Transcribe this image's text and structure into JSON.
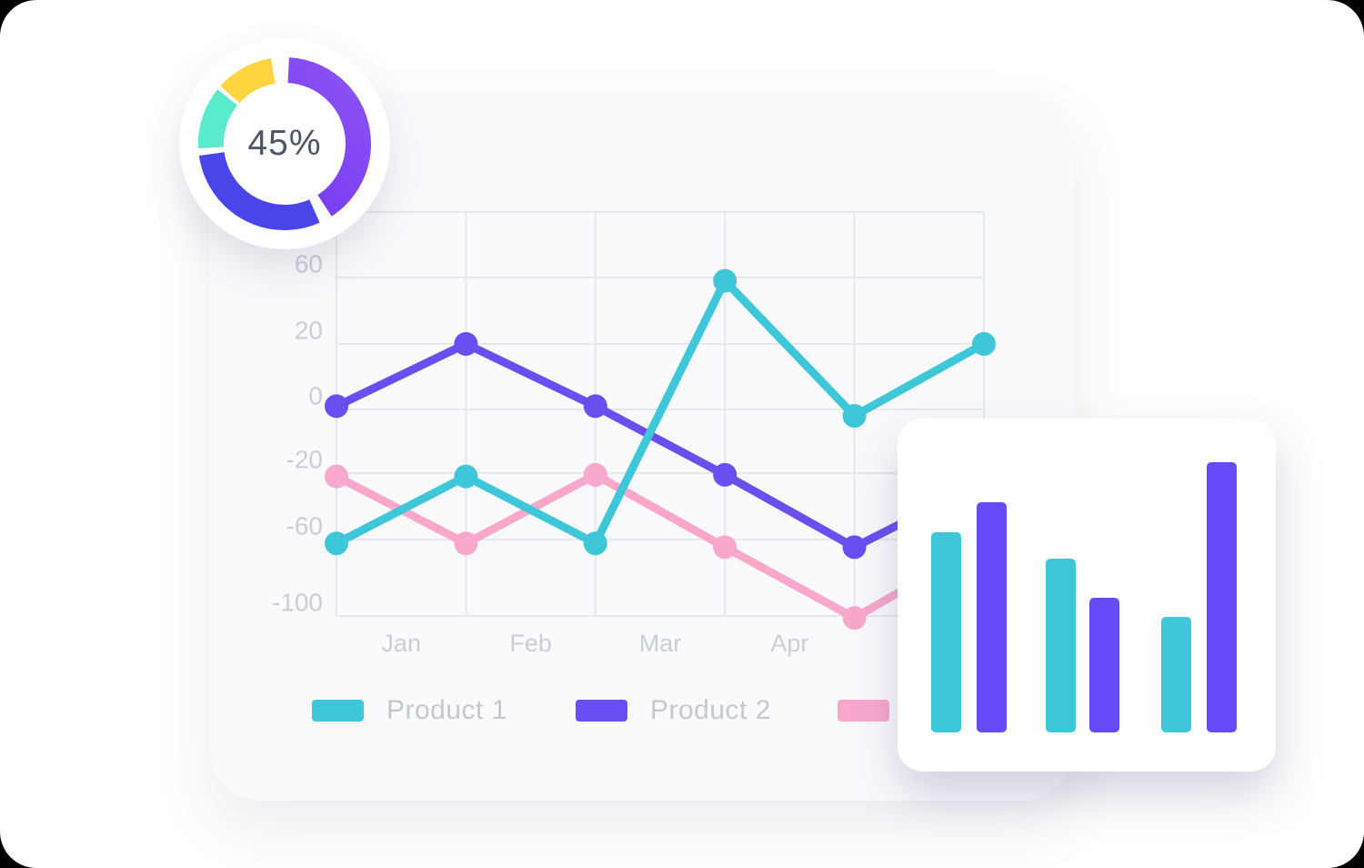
{
  "page": {
    "background": "#ffffff"
  },
  "donut_widget": {
    "center_label": "45%",
    "text_color": "#4d5466",
    "segments": [
      {
        "name": "violet",
        "color": "#7a3cf3",
        "gradient_start": "#6d2ef0",
        "gradient_end": "#8c53f6",
        "start_deg": 3,
        "sweep_deg": 144
      },
      {
        "name": "indigo",
        "color": "#4a45e8",
        "start_deg": 156,
        "sweep_deg": 106
      },
      {
        "name": "teal",
        "color": "#5aeacc",
        "start_deg": 267,
        "sweep_deg": 42
      },
      {
        "name": "yellow",
        "color": "#ffd43e",
        "start_deg": 312,
        "sweep_deg": 39
      }
    ]
  },
  "legend": {
    "items": [
      {
        "label": "Product 1",
        "color": "#3ec7d9"
      },
      {
        "label": "Product 2",
        "color": "#6b4ef0"
      },
      {
        "label": "",
        "color": "#f9a8cc",
        "note": "label hidden behind bar card"
      }
    ]
  },
  "chart_data": [
    {
      "type": "line",
      "title": "",
      "xlabel": "",
      "ylabel": "",
      "x_tick_labels": [
        "Jan",
        "Feb",
        "Mar",
        "Apr"
      ],
      "y_tick_labels": [
        60,
        20,
        0,
        -20,
        -60,
        -100
      ],
      "grid": true,
      "legend_position": "bottom",
      "points_per_series": 6,
      "series": [
        {
          "name": "Product 1",
          "color": "#3ec7d9",
          "values": [
            -62,
            -22,
            -62,
            58,
            -2,
            20
          ]
        },
        {
          "name": "Product 2",
          "color": "#6b4ef0",
          "values": [
            1,
            20,
            1,
            -21,
            -64,
            -25
          ],
          "last_point_hidden_behind_card": true
        },
        {
          "name": "",
          "color": "#f9a8cc",
          "values": [
            -22,
            -62,
            -21,
            -64,
            -101,
            -62
          ],
          "last_point_hidden_behind_card": true
        }
      ],
      "tick_color": "#c9ced6",
      "gridline_color": "#e5e8ec"
    },
    {
      "type": "bar",
      "title": "",
      "note": "mini bar card, no axes or labels shown",
      "values": [
        220,
        253,
        191,
        148,
        127,
        297
      ],
      "unit": "px-height (no scale displayed)",
      "colors": [
        "#3ec7d9",
        "#654af8",
        "#3ec7d9",
        "#654af8",
        "#3ec7d9",
        "#654af8"
      ]
    }
  ]
}
